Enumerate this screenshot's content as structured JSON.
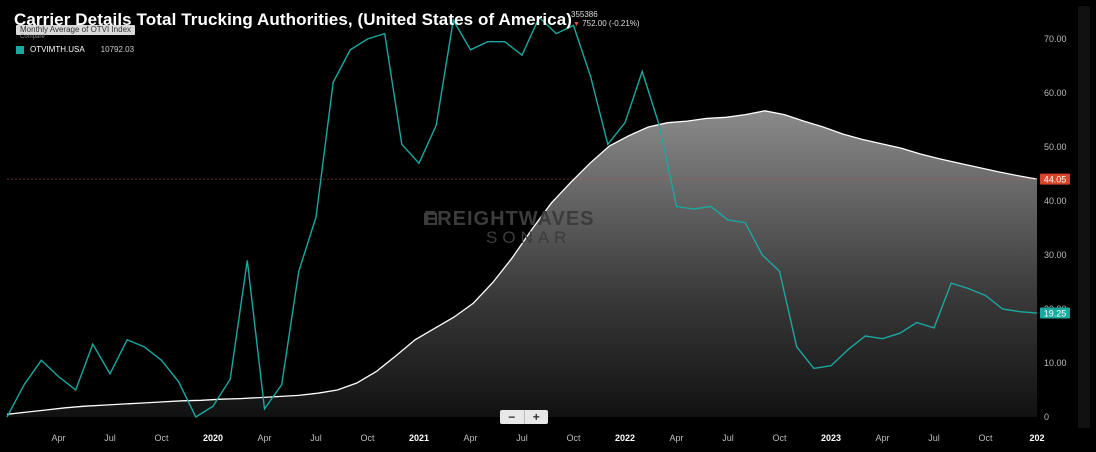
{
  "header": {
    "title": "Carrier Details Total Trucking Authorities, (United States of America)",
    "compare_label": "Monthly Average of OTVI Index",
    "compare_sub": "Compare",
    "top_value": "355386",
    "top_change": "752.00 (-0.21%)",
    "series_code": "OTVIMTH.USA",
    "series_value": "10792.03"
  },
  "watermark": {
    "line1": "FREIGHTWAVES",
    "line2": "SONAR"
  },
  "zoom": {
    "minus": "−",
    "plus": "+"
  },
  "colors": {
    "teal": "#1aa8a0",
    "white_line": "#ffffff",
    "last_tag": "#d9432b",
    "bg": "#000000"
  },
  "chart_data": {
    "type": "line",
    "ylim": [
      0,
      75
    ],
    "y_ticks": [
      "0",
      "10.00",
      "20.00",
      "30.00",
      "40.00",
      "50.00",
      "60.00",
      "70.00"
    ],
    "x_ticks": [
      {
        "label": "Apr",
        "i": 3
      },
      {
        "label": "Jul",
        "i": 6
      },
      {
        "label": "Oct",
        "i": 9
      },
      {
        "label": "2020",
        "i": 12
      },
      {
        "label": "Apr",
        "i": 15
      },
      {
        "label": "Jul",
        "i": 18
      },
      {
        "label": "Oct",
        "i": 21
      },
      {
        "label": "2021",
        "i": 24
      },
      {
        "label": "Apr",
        "i": 27
      },
      {
        "label": "Jul",
        "i": 30
      },
      {
        "label": "Oct",
        "i": 33
      },
      {
        "label": "2022",
        "i": 36
      },
      {
        "label": "Apr",
        "i": 39
      },
      {
        "label": "Jul",
        "i": 42
      },
      {
        "label": "Oct",
        "i": 45
      },
      {
        "label": "2023",
        "i": 48
      },
      {
        "label": "Apr",
        "i": 51
      },
      {
        "label": "Jul",
        "i": 54
      },
      {
        "label": "Oct",
        "i": 57
      },
      {
        "label": "202",
        "i": 60
      }
    ],
    "x_count": 61,
    "series": [
      {
        "values": [
          0,
          6,
          10.5,
          7.5,
          5,
          13.5,
          8,
          14.3,
          13,
          10.5,
          6.5,
          0,
          2,
          7,
          29,
          1.5,
          6,
          27,
          37,
          62,
          68,
          70,
          71,
          50.5,
          47,
          54,
          73.5,
          68,
          69.5,
          69.5,
          67,
          74,
          71,
          72.5,
          63,
          50.5,
          54.5,
          64,
          54,
          39,
          38.5,
          39,
          36.5,
          36,
          30,
          27,
          13,
          9,
          9.5,
          12.5,
          15,
          14.5,
          15.5,
          17.5,
          16.5,
          24.8,
          23.8,
          22.5,
          20,
          19.5,
          19.25
        ]
      },
      {
        "values": [
          0.5,
          0.9,
          1.3,
          1.7,
          2.0,
          2.2,
          2.4,
          2.6,
          2.8,
          3.0,
          3.1,
          3.3,
          3.4,
          3.6,
          3.8,
          4.0,
          4.4,
          5.0,
          6.3,
          8.4,
          11.3,
          14.3,
          16.4,
          18.5,
          21.1,
          24.9,
          29.5,
          34.7,
          39.6,
          43.4,
          47.0,
          50.2,
          52.1,
          53.7,
          54.5,
          54.8,
          55.3,
          55.5,
          56.0,
          56.7,
          56.0,
          54.8,
          53.7,
          52.4,
          51.4,
          50.6,
          49.8,
          48.7,
          47.8,
          47.0,
          46.2,
          45.4,
          44.7,
          44.05
        ],
        "x_start": 0,
        "x_end": 60
      }
    ],
    "last_labels": {
      "white": "44.05",
      "teal": "19.25"
    }
  }
}
